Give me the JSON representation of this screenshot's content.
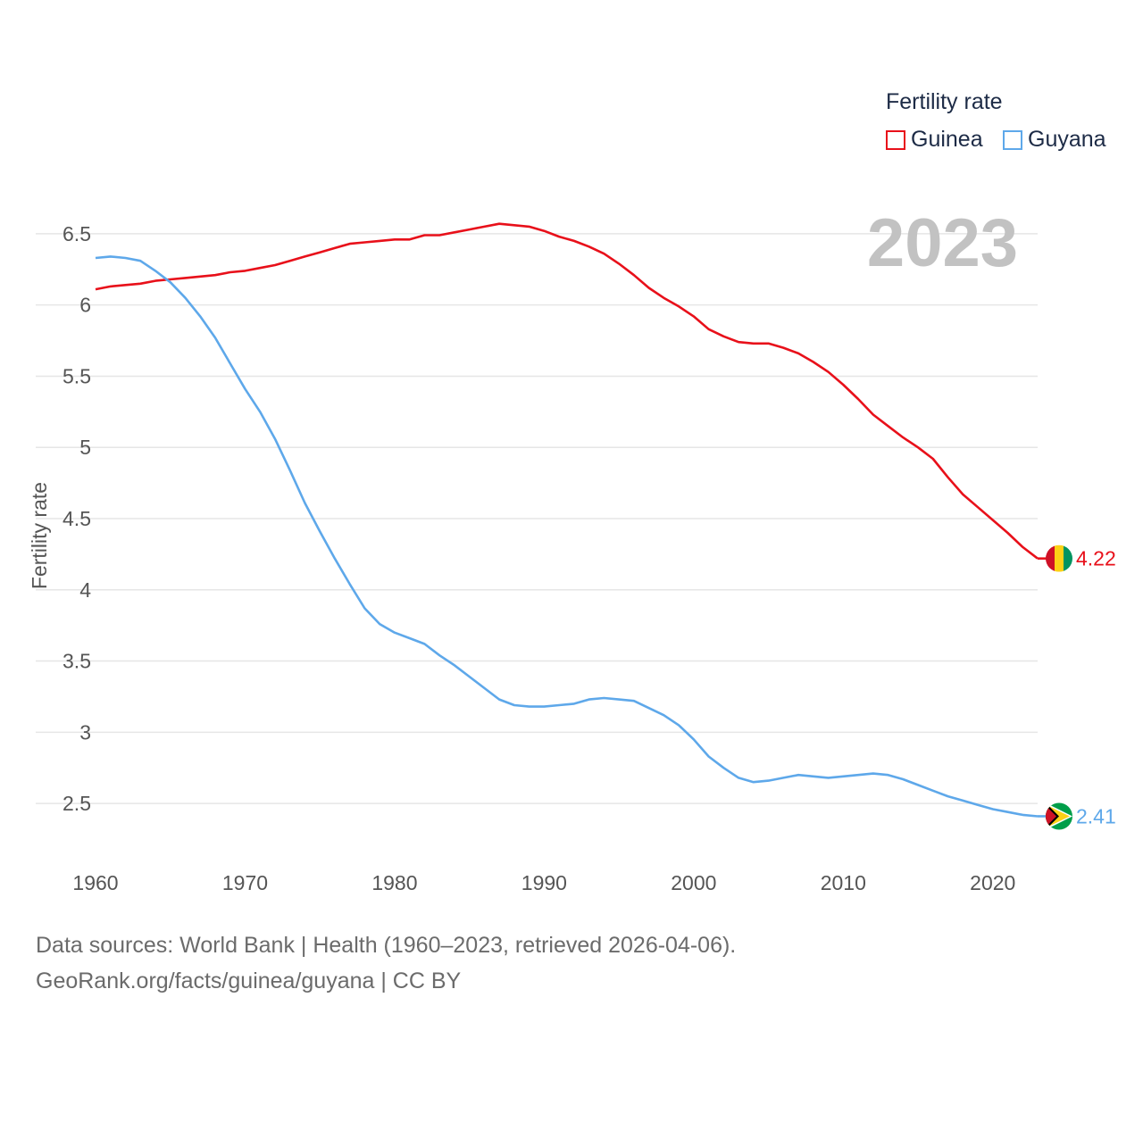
{
  "legend": {
    "title": "Fertility rate",
    "items": [
      {
        "label": "Guinea",
        "color": "#e8101a"
      },
      {
        "label": "Guyana",
        "color": "#5ea8ea"
      }
    ]
  },
  "footer": {
    "line1": "Data sources: World Bank | Health (1960–2023, retrieved 2026-04-06).",
    "line2": "GeoRank.org/facts/guinea/guyana | CC BY"
  },
  "chart_data": {
    "type": "line",
    "title": "Fertility rate",
    "year_label": "2023",
    "xlabel": "",
    "ylabel": "Fertility rate",
    "xlim": [
      1960,
      2023
    ],
    "ylim": [
      2.25,
      6.7
    ],
    "x_ticks": [
      1960,
      1970,
      1980,
      1990,
      2000,
      2010,
      2020
    ],
    "y_ticks": [
      2.5,
      3,
      3.5,
      4,
      4.5,
      5,
      5.5,
      6,
      6.5
    ],
    "grid": true,
    "legend_position": "top-right",
    "x": [
      1960,
      1961,
      1962,
      1963,
      1964,
      1965,
      1966,
      1967,
      1968,
      1969,
      1970,
      1971,
      1972,
      1973,
      1974,
      1975,
      1976,
      1977,
      1978,
      1979,
      1980,
      1981,
      1982,
      1983,
      1984,
      1985,
      1986,
      1987,
      1988,
      1989,
      1990,
      1991,
      1992,
      1993,
      1994,
      1995,
      1996,
      1997,
      1998,
      1999,
      2000,
      2001,
      2002,
      2003,
      2004,
      2005,
      2006,
      2007,
      2008,
      2009,
      2010,
      2011,
      2012,
      2013,
      2014,
      2015,
      2016,
      2017,
      2018,
      2019,
      2020,
      2021,
      2022,
      2023
    ],
    "series": [
      {
        "name": "Guinea",
        "color": "#e8101a",
        "end_label": "4.22",
        "values": [
          6.11,
          6.13,
          6.14,
          6.15,
          6.17,
          6.18,
          6.19,
          6.2,
          6.21,
          6.23,
          6.24,
          6.26,
          6.28,
          6.31,
          6.34,
          6.37,
          6.4,
          6.43,
          6.44,
          6.45,
          6.46,
          6.46,
          6.49,
          6.49,
          6.51,
          6.53,
          6.55,
          6.57,
          6.56,
          6.55,
          6.52,
          6.48,
          6.45,
          6.41,
          6.36,
          6.29,
          6.21,
          6.12,
          6.05,
          5.99,
          5.92,
          5.83,
          5.78,
          5.74,
          5.73,
          5.73,
          5.7,
          5.66,
          5.6,
          5.53,
          5.44,
          5.34,
          5.23,
          5.15,
          5.07,
          5.0,
          4.92,
          4.79,
          4.67,
          4.58,
          4.49,
          4.4,
          4.3,
          4.22
        ]
      },
      {
        "name": "Guyana",
        "color": "#5ea8ea",
        "end_label": "2.41",
        "values": [
          6.33,
          6.34,
          6.33,
          6.31,
          6.24,
          6.16,
          6.05,
          5.92,
          5.77,
          5.59,
          5.41,
          5.25,
          5.06,
          4.84,
          4.61,
          4.41,
          4.22,
          4.04,
          3.87,
          3.76,
          3.7,
          3.66,
          3.62,
          3.54,
          3.47,
          3.39,
          3.31,
          3.23,
          3.19,
          3.18,
          3.18,
          3.19,
          3.2,
          3.23,
          3.24,
          3.23,
          3.22,
          3.17,
          3.12,
          3.05,
          2.95,
          2.83,
          2.75,
          2.68,
          2.65,
          2.66,
          2.68,
          2.7,
          2.69,
          2.68,
          2.69,
          2.7,
          2.71,
          2.7,
          2.67,
          2.63,
          2.59,
          2.55,
          2.52,
          2.49,
          2.46,
          2.44,
          2.42,
          2.41
        ]
      }
    ]
  }
}
